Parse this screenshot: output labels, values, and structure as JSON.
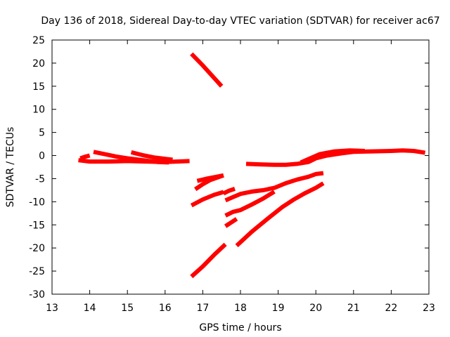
{
  "chart_data": {
    "type": "line",
    "title": "Day 136 of 2018, Sidereal Day-to-day VTEC variation (SDTVAR) for receiver ac67",
    "xlabel": "GPS time / hours",
    "ylabel": "SDTVAR / TECUs",
    "xlim": [
      13,
      23
    ],
    "ylim": [
      -30,
      25
    ],
    "xticks": [
      13,
      14,
      15,
      16,
      17,
      18,
      19,
      20,
      21,
      22,
      23
    ],
    "yticks": [
      -30,
      -25,
      -20,
      -15,
      -10,
      -5,
      0,
      5,
      10,
      15,
      20,
      25
    ],
    "grid": false,
    "legend": "none",
    "color": "#ff0000",
    "series": [
      {
        "points": [
          [
            13.7,
            -1.0
          ],
          [
            14.0,
            -1.3
          ],
          [
            14.5,
            -1.3
          ],
          [
            15.0,
            -1.2
          ],
          [
            15.5,
            -1.3
          ],
          [
            16.0,
            -1.4
          ],
          [
            16.3,
            -1.3
          ],
          [
            16.65,
            -1.2
          ]
        ]
      },
      {
        "points": [
          [
            13.75,
            -0.6
          ],
          [
            13.9,
            -0.2
          ],
          [
            14.0,
            0.0
          ]
        ]
      },
      {
        "points": [
          [
            14.1,
            0.8
          ],
          [
            14.4,
            0.3
          ],
          [
            14.7,
            -0.2
          ],
          [
            15.0,
            -0.6
          ],
          [
            15.4,
            -1.0
          ],
          [
            15.8,
            -1.4
          ],
          [
            16.1,
            -1.5
          ]
        ]
      },
      {
        "points": [
          [
            15.1,
            0.7
          ],
          [
            15.4,
            0.1
          ],
          [
            15.7,
            -0.4
          ],
          [
            16.0,
            -0.7
          ],
          [
            16.2,
            -0.9
          ]
        ]
      },
      {
        "points": [
          [
            16.7,
            22.0
          ],
          [
            17.0,
            19.5
          ],
          [
            17.3,
            16.8
          ],
          [
            17.5,
            15.0
          ]
        ]
      },
      {
        "points": [
          [
            16.7,
            -26.2
          ],
          [
            17.0,
            -24.0
          ],
          [
            17.3,
            -21.5
          ],
          [
            17.6,
            -19.2
          ]
        ]
      },
      {
        "points": [
          [
            16.7,
            -10.8
          ],
          [
            17.0,
            -9.5
          ],
          [
            17.3,
            -8.5
          ],
          [
            17.55,
            -7.9
          ]
        ]
      },
      {
        "points": [
          [
            16.8,
            -7.3
          ],
          [
            17.0,
            -6.2
          ],
          [
            17.2,
            -5.3
          ],
          [
            17.55,
            -4.3
          ]
        ]
      },
      {
        "points": [
          [
            16.85,
            -5.5
          ],
          [
            17.1,
            -5.0
          ],
          [
            17.3,
            -4.7
          ],
          [
            17.55,
            -4.3
          ]
        ]
      },
      {
        "points": [
          [
            17.55,
            -8.2
          ],
          [
            17.7,
            -7.6
          ],
          [
            17.85,
            -7.2
          ]
        ]
      },
      {
        "points": [
          [
            17.6,
            -15.3
          ],
          [
            17.75,
            -14.5
          ],
          [
            17.9,
            -13.7
          ]
        ]
      },
      {
        "points": [
          [
            17.6,
            -13.0
          ],
          [
            17.8,
            -12.2
          ],
          [
            18.0,
            -11.8
          ],
          [
            18.3,
            -10.6
          ],
          [
            18.6,
            -9.3
          ],
          [
            18.9,
            -7.8
          ]
        ]
      },
      {
        "points": [
          [
            17.6,
            -9.7
          ],
          [
            17.8,
            -9.0
          ],
          [
            18.0,
            -8.3
          ],
          [
            18.3,
            -7.8
          ],
          [
            18.6,
            -7.5
          ],
          [
            18.9,
            -7.0
          ],
          [
            19.2,
            -6.0
          ],
          [
            19.5,
            -5.2
          ],
          [
            19.8,
            -4.6
          ],
          [
            20.0,
            -4.0
          ],
          [
            20.2,
            -3.8
          ]
        ]
      },
      {
        "points": [
          [
            17.9,
            -19.5
          ],
          [
            18.3,
            -16.5
          ],
          [
            18.7,
            -13.8
          ],
          [
            19.1,
            -11.2
          ],
          [
            19.4,
            -9.6
          ],
          [
            19.7,
            -8.2
          ],
          [
            20.0,
            -7.0
          ],
          [
            20.2,
            -6.0
          ]
        ]
      },
      {
        "points": [
          [
            18.15,
            -1.8
          ],
          [
            18.5,
            -1.9
          ],
          [
            18.9,
            -2.0
          ],
          [
            19.2,
            -2.0
          ],
          [
            19.5,
            -1.8
          ],
          [
            19.8,
            -1.4
          ],
          [
            20.0,
            -0.6
          ],
          [
            20.3,
            0.0
          ],
          [
            20.7,
            0.5
          ],
          [
            21.0,
            0.8
          ],
          [
            21.5,
            0.9
          ],
          [
            22.0,
            1.0
          ],
          [
            22.3,
            1.1
          ],
          [
            22.6,
            1.0
          ],
          [
            22.9,
            0.6
          ]
        ]
      },
      {
        "points": [
          [
            19.6,
            -1.5
          ],
          [
            19.85,
            -0.6
          ],
          [
            20.1,
            0.3
          ],
          [
            20.5,
            0.9
          ],
          [
            20.9,
            1.1
          ],
          [
            21.3,
            1.0
          ]
        ]
      }
    ]
  }
}
